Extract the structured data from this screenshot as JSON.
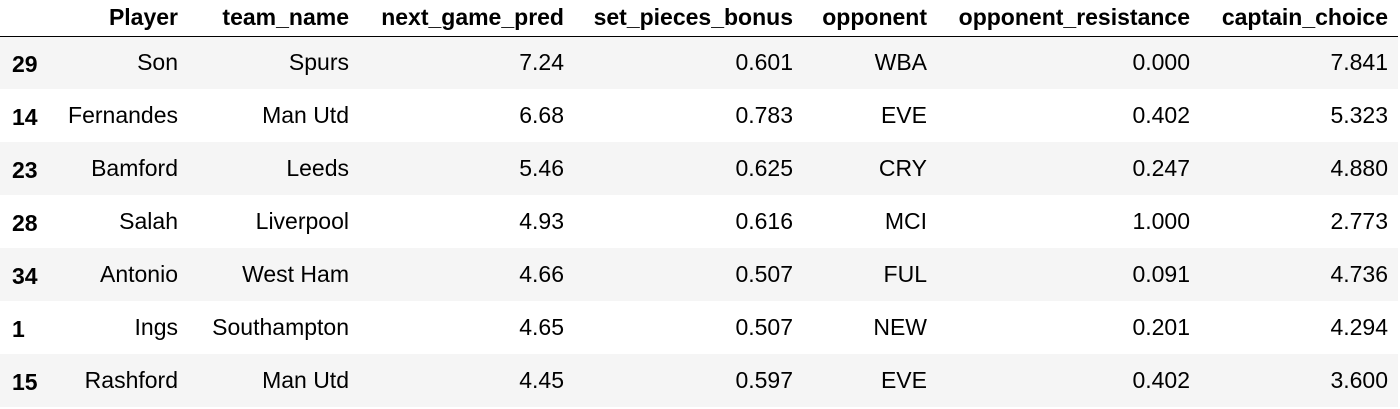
{
  "table": {
    "columns": [
      "",
      "Player",
      "team_name",
      "next_game_pred",
      "set_pieces_bonus",
      "opponent",
      "opponent_resistance",
      "captain_choice"
    ],
    "rows": [
      {
        "index": "29",
        "player": "Son",
        "team_name": "Spurs",
        "next_game_pred": "7.24",
        "set_pieces_bonus": "0.601",
        "opponent": "WBA",
        "opponent_resistance": "0.000",
        "captain_choice": "7.841"
      },
      {
        "index": "14",
        "player": "Fernandes",
        "team_name": "Man Utd",
        "next_game_pred": "6.68",
        "set_pieces_bonus": "0.783",
        "opponent": "EVE",
        "opponent_resistance": "0.402",
        "captain_choice": "5.323"
      },
      {
        "index": "23",
        "player": "Bamford",
        "team_name": "Leeds",
        "next_game_pred": "5.46",
        "set_pieces_bonus": "0.625",
        "opponent": "CRY",
        "opponent_resistance": "0.247",
        "captain_choice": "4.880"
      },
      {
        "index": "28",
        "player": "Salah",
        "team_name": "Liverpool",
        "next_game_pred": "4.93",
        "set_pieces_bonus": "0.616",
        "opponent": "MCI",
        "opponent_resistance": "1.000",
        "captain_choice": "2.773"
      },
      {
        "index": "34",
        "player": "Antonio",
        "team_name": "West Ham",
        "next_game_pred": "4.66",
        "set_pieces_bonus": "0.507",
        "opponent": "FUL",
        "opponent_resistance": "0.091",
        "captain_choice": "4.736"
      },
      {
        "index": "1",
        "player": "Ings",
        "team_name": "Southampton",
        "next_game_pred": "4.65",
        "set_pieces_bonus": "0.507",
        "opponent": "NEW",
        "opponent_resistance": "0.201",
        "captain_choice": "4.294"
      },
      {
        "index": "15",
        "player": "Rashford",
        "team_name": "Man Utd",
        "next_game_pred": "4.45",
        "set_pieces_bonus": "0.597",
        "opponent": "EVE",
        "opponent_resistance": "0.402",
        "captain_choice": "3.600"
      }
    ]
  }
}
